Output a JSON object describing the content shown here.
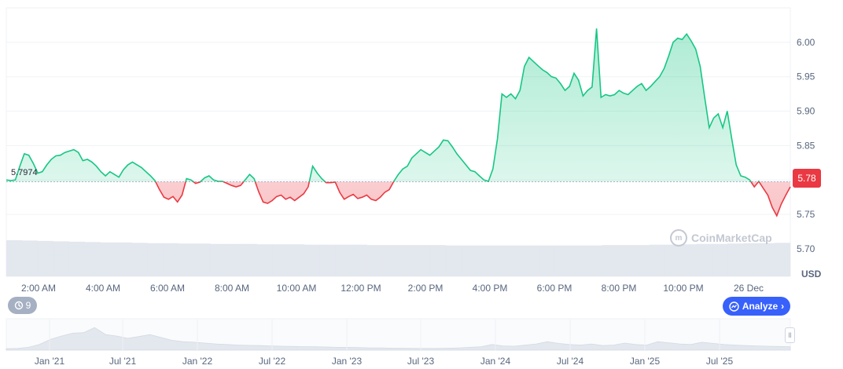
{
  "chart_data": {
    "type": "area",
    "y_ticks": [
      "6.00",
      "5.95",
      "5.90",
      "5.85",
      "5.80",
      "5.75",
      "5.70"
    ],
    "y_values": [
      6.0,
      5.95,
      5.9,
      5.85,
      5.8,
      5.75,
      5.7
    ],
    "ylim": [
      5.66,
      6.05
    ],
    "currency_label": "USD",
    "x_ticks": [
      "2:00 AM",
      "4:00 AM",
      "6:00 AM",
      "8:00 AM",
      "10:00 AM",
      "12:00 PM",
      "2:00 PM",
      "4:00 PM",
      "6:00 PM",
      "8:00 PM",
      "10:00 PM",
      "26 Dec"
    ],
    "reference_value": "5.7974",
    "reference_price": 5.7974,
    "current_price": "5.78",
    "grid": true,
    "colors": {
      "up": "#16c784",
      "down": "#ea3943",
      "accent": "#3861fb"
    },
    "price_series": [
      5.8,
      5.799,
      5.8,
      5.82,
      5.838,
      5.836,
      5.824,
      5.81,
      5.812,
      5.822,
      5.83,
      5.835,
      5.836,
      5.84,
      5.842,
      5.844,
      5.84,
      5.828,
      5.83,
      5.826,
      5.82,
      5.812,
      5.806,
      5.812,
      5.808,
      5.804,
      5.815,
      5.822,
      5.826,
      5.822,
      5.818,
      5.812,
      5.806,
      5.799,
      5.786,
      5.775,
      5.772,
      5.776,
      5.768,
      5.778,
      5.802,
      5.8,
      5.795,
      5.797,
      5.803,
      5.806,
      5.8,
      5.798,
      5.798,
      5.795,
      5.792,
      5.79,
      5.792,
      5.8,
      5.808,
      5.802,
      5.783,
      5.768,
      5.766,
      5.77,
      5.776,
      5.778,
      5.772,
      5.775,
      5.77,
      5.775,
      5.78,
      5.79,
      5.82,
      5.81,
      5.802,
      5.796,
      5.796,
      5.797,
      5.782,
      5.772,
      5.776,
      5.779,
      5.773,
      5.775,
      5.778,
      5.772,
      5.77,
      5.775,
      5.782,
      5.786,
      5.798,
      5.808,
      5.816,
      5.82,
      5.832,
      5.838,
      5.844,
      5.84,
      5.836,
      5.842,
      5.848,
      5.858,
      5.857,
      5.848,
      5.838,
      5.83,
      5.822,
      5.814,
      5.812,
      5.806,
      5.8,
      5.798,
      5.816,
      5.86,
      5.925,
      5.92,
      5.925,
      5.918,
      5.93,
      5.965,
      5.978,
      5.972,
      5.966,
      5.96,
      5.956,
      5.95,
      5.948,
      5.94,
      5.93,
      5.936,
      5.955,
      5.945,
      5.922,
      5.93,
      5.935,
      6.02,
      5.92,
      5.924,
      5.922,
      5.924,
      5.93,
      5.926,
      5.924,
      5.93,
      5.936,
      5.94,
      5.93,
      5.936,
      5.943,
      5.95,
      5.962,
      5.98,
      6.0,
      6.006,
      6.004,
      6.012,
      6.002,
      5.99,
      5.965,
      5.92,
      5.876,
      5.89,
      5.896,
      5.876,
      5.9,
      5.86,
      5.822,
      5.806,
      5.804,
      5.8,
      5.79,
      5.798,
      5.788,
      5.778,
      5.76,
      5.748,
      5.765,
      5.778,
      5.79
    ],
    "volume_series": [
      0.96,
      0.95,
      0.94,
      0.93,
      0.92,
      0.91,
      0.9,
      0.9,
      0.89,
      0.88,
      0.88,
      0.87,
      0.87,
      0.86,
      0.86,
      0.86,
      0.85,
      0.85,
      0.85,
      0.84,
      0.84,
      0.84,
      0.84,
      0.83,
      0.83,
      0.83,
      0.83,
      0.83,
      0.82,
      0.82,
      0.82,
      0.82,
      0.82,
      0.82,
      0.82,
      0.82,
      0.82,
      0.82,
      0.83,
      0.83,
      0.83,
      0.84,
      0.84,
      0.85,
      0.86,
      0.86,
      0.87,
      0.88,
      0.88,
      0.89
    ],
    "navigator_ticks": [
      "Jan '21",
      "Jul '21",
      "Jan '22",
      "Jul '22",
      "Jan '23",
      "Jul '23",
      "Jan '24",
      "Jul '24",
      "Jan '25",
      "Jul '25"
    ],
    "navigator_series": [
      0.05,
      0.06,
      0.1,
      0.2,
      0.38,
      0.5,
      0.6,
      0.62,
      0.8,
      0.55,
      0.5,
      0.42,
      0.48,
      0.55,
      0.45,
      0.35,
      0.3,
      0.28,
      0.25,
      0.22,
      0.2,
      0.18,
      0.17,
      0.16,
      0.15,
      0.14,
      0.13,
      0.12,
      0.12,
      0.11,
      0.1,
      0.1,
      0.09,
      0.08,
      0.08,
      0.07,
      0.07,
      0.06,
      0.06,
      0.06,
      0.07,
      0.08,
      0.1,
      0.12,
      0.2,
      0.15,
      0.14,
      0.18,
      0.22,
      0.3,
      0.24,
      0.2,
      0.18,
      0.22,
      0.16,
      0.18,
      0.25,
      0.2,
      0.18,
      0.3,
      0.26,
      0.22,
      0.2,
      0.28,
      0.24,
      0.2,
      0.18,
      0.16,
      0.15,
      0.14,
      0.13,
      0.12
    ]
  },
  "controls": {
    "events_count": "9",
    "analyze_label": "Analyze",
    "analyze_chevron": "›",
    "watermark_text": "CoinMarketCap",
    "handle_glyph": "ll"
  }
}
